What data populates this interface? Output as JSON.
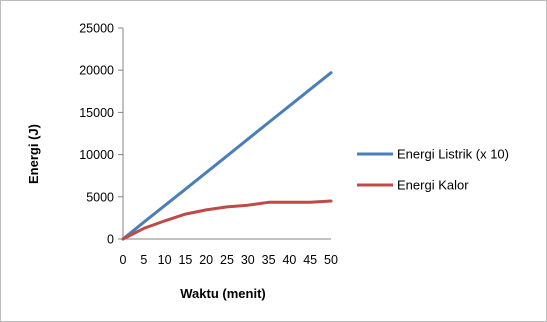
{
  "chart_data": {
    "type": "line",
    "title": "",
    "xlabel": "Waktu (menit)",
    "ylabel": "Energi (J)",
    "x": [
      0,
      5,
      10,
      15,
      20,
      25,
      30,
      35,
      40,
      45,
      50
    ],
    "x_tick_labels": [
      "0",
      "5",
      "10",
      "15",
      "20",
      "25",
      "30",
      "35",
      "40",
      "45",
      "50"
    ],
    "y_ticks": [
      0,
      5000,
      10000,
      15000,
      20000,
      25000
    ],
    "y_tick_labels": [
      "0",
      "5000",
      "10000",
      "15000",
      "20000",
      "25000"
    ],
    "ylim": [
      0,
      25000
    ],
    "grid": false,
    "legend_position": "right",
    "series": [
      {
        "name": "Energi Listrik (x 10)",
        "color": "#4a7ebb",
        "values": [
          0,
          1990,
          3950,
          5900,
          7870,
          9850,
          11820,
          13800,
          15770,
          17740,
          19700
        ]
      },
      {
        "name": "Energi Kalor",
        "color": "#be4b48",
        "values": [
          0,
          1250,
          2150,
          2950,
          3450,
          3800,
          4000,
          4350,
          4350,
          4350,
          4500
        ]
      }
    ]
  }
}
